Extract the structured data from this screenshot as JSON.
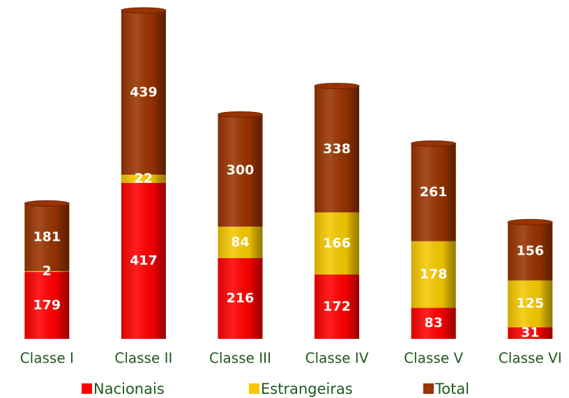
{
  "chart_data": {
    "type": "bar",
    "stacked": true,
    "categories": [
      "Classe I",
      "Classe II",
      "Classe III",
      "Classe IV",
      "Classe V",
      "Classe VI"
    ],
    "series": [
      {
        "name": "Nacionais",
        "color": "#ff0000",
        "values": [
          179,
          417,
          216,
          172,
          83,
          31
        ]
      },
      {
        "name": "Estrangeiras",
        "color": "#f5c800",
        "values": [
          2,
          22,
          84,
          166,
          178,
          125
        ]
      },
      {
        "name": "Total",
        "color": "#993300",
        "values": [
          181,
          439,
          300,
          338,
          261,
          156
        ]
      }
    ],
    "legend": "bottom"
  }
}
